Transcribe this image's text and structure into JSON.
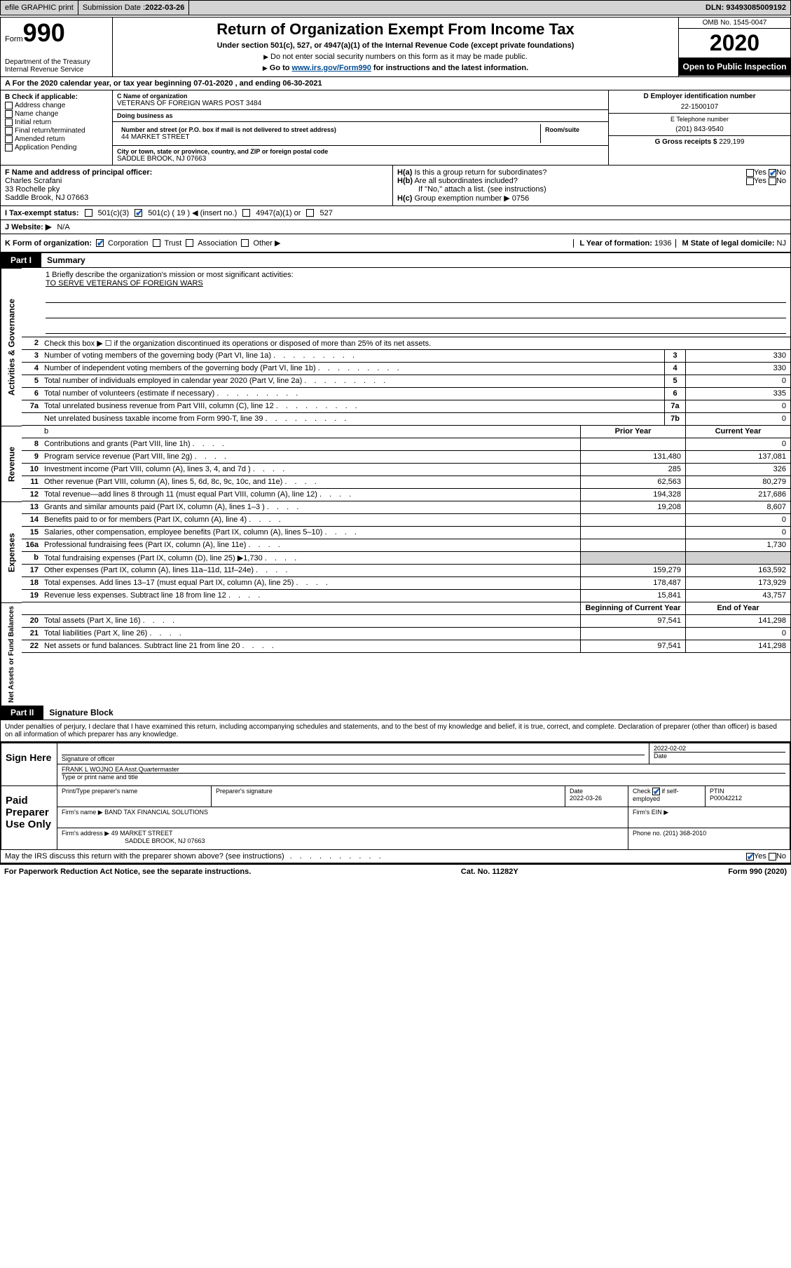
{
  "topbar": {
    "efile": "efile GRAPHIC print",
    "submission_label": "Submission Date : ",
    "submission_date": "2022-03-26",
    "dln_label": "DLN: ",
    "dln": "93493085009192"
  },
  "header": {
    "form_word": "Form",
    "form_number": "990",
    "dept": "Department of the Treasury\nInternal Revenue Service",
    "title": "Return of Organization Exempt From Income Tax",
    "subtitle": "Under section 501(c), 527, or 4947(a)(1) of the Internal Revenue Code (except private foundations)",
    "note1": "Do not enter social security numbers on this form as it may be made public.",
    "note2_pre": "Go to ",
    "note2_link": "www.irs.gov/Form990",
    "note2_post": " for instructions and the latest information.",
    "omb": "OMB No. 1545-0047",
    "year": "2020",
    "public": "Open to Public Inspection"
  },
  "period": {
    "text_pre": "For the 2020 calendar year, or tax year beginning ",
    "begin": "07-01-2020",
    "mid": " , and ending ",
    "end": "06-30-2021"
  },
  "section_b": {
    "label": "B Check if applicable:",
    "items": [
      "Address change",
      "Name change",
      "Initial return",
      "Final return/terminated",
      "Amended return",
      "Application Pending"
    ]
  },
  "org": {
    "name_label": "C Name of organization",
    "name": "VETERANS OF FOREIGN WARS POST 3484",
    "dba_label": "Doing business as",
    "dba": "",
    "addr_label": "Number and street (or P.O. box if mail is not delivered to street address)",
    "room_label": "Room/suite",
    "addr": "44 MARKET STREET",
    "city_label": "City or town, state or province, country, and ZIP or foreign postal code",
    "city": "SADDLE BROOK, NJ  07663"
  },
  "section_d": {
    "label": "D Employer identification number",
    "value": "22-1500107"
  },
  "section_e": {
    "label": "E Telephone number",
    "value": "(201) 843-9540"
  },
  "section_g": {
    "label": "G Gross receipts $ ",
    "value": "229,199"
  },
  "section_f": {
    "label": "F Name and address of principal officer:",
    "name": "Charles Scrafani",
    "addr": "33 Rochelle pky",
    "city": "Saddle Brook, NJ  07663"
  },
  "section_h": {
    "a_label": "H(a)  Is this a group return for subordinates?",
    "b_label": "H(b)  Are all subordinates included?",
    "b_note": "If \"No,\" attach a list. (see instructions)",
    "c_label": "H(c)  Group exemption number ▶ ",
    "c_value": "0756",
    "yes": "Yes",
    "no": "No"
  },
  "section_i": {
    "label": "I   Tax-exempt status:",
    "opt1": "501(c)(3)",
    "opt2": "501(c) ( 19 ) ◀ (insert no.)",
    "opt3": "4947(a)(1) or",
    "opt4": "527"
  },
  "section_j": {
    "label": "J   Website: ▶",
    "value": "N/A"
  },
  "section_k": {
    "label": "K Form of organization:",
    "opts": [
      "Corporation",
      "Trust",
      "Association",
      "Other ▶"
    ]
  },
  "section_l": {
    "label": "L Year of formation: ",
    "value": "1936"
  },
  "section_m": {
    "label": "M State of legal domicile: ",
    "value": "NJ"
  },
  "part1": {
    "tab": "Part I",
    "title": "Summary",
    "line1_label": "1   Briefly describe the organization's mission or most significant activities:",
    "line1_value": "TO SERVE VETERANS OF FOREIGN WARS",
    "line2": "Check this box ▶ ☐  if the organization discontinued its operations or disposed of more than 25% of its net assets.",
    "vert1": "Activities & Governance",
    "vert2": "Revenue",
    "vert3": "Expenses",
    "vert4": "Net Assets or Fund Balances"
  },
  "summary_gov": [
    {
      "n": "3",
      "d": "Number of voting members of the governing body (Part VI, line 1a)",
      "b": "3",
      "v": "330"
    },
    {
      "n": "4",
      "d": "Number of independent voting members of the governing body (Part VI, line 1b)",
      "b": "4",
      "v": "330"
    },
    {
      "n": "5",
      "d": "Total number of individuals employed in calendar year 2020 (Part V, line 2a)",
      "b": "5",
      "v": "0"
    },
    {
      "n": "6",
      "d": "Total number of volunteers (estimate if necessary)",
      "b": "6",
      "v": "335"
    },
    {
      "n": "7a",
      "d": "Total unrelated business revenue from Part VIII, column (C), line 12",
      "b": "7a",
      "v": "0"
    },
    {
      "n": "",
      "d": "Net unrelated business taxable income from Form 990-T, line 39",
      "b": "7b",
      "v": "0"
    }
  ],
  "col_headers": {
    "prior": "Prior Year",
    "current": "Current Year"
  },
  "summary_rev": [
    {
      "n": "8",
      "d": "Contributions and grants (Part VIII, line 1h)",
      "p": "",
      "c": "0"
    },
    {
      "n": "9",
      "d": "Program service revenue (Part VIII, line 2g)",
      "p": "131,480",
      "c": "137,081"
    },
    {
      "n": "10",
      "d": "Investment income (Part VIII, column (A), lines 3, 4, and 7d )",
      "p": "285",
      "c": "326"
    },
    {
      "n": "11",
      "d": "Other revenue (Part VIII, column (A), lines 5, 6d, 8c, 9c, 10c, and 11e)",
      "p": "62,563",
      "c": "80,279"
    },
    {
      "n": "12",
      "d": "Total revenue—add lines 8 through 11 (must equal Part VIII, column (A), line 12)",
      "p": "194,328",
      "c": "217,686"
    }
  ],
  "summary_exp": [
    {
      "n": "13",
      "d": "Grants and similar amounts paid (Part IX, column (A), lines 1–3 )",
      "p": "19,208",
      "c": "8,607"
    },
    {
      "n": "14",
      "d": "Benefits paid to or for members (Part IX, column (A), line 4)",
      "p": "",
      "c": "0"
    },
    {
      "n": "15",
      "d": "Salaries, other compensation, employee benefits (Part IX, column (A), lines 5–10)",
      "p": "",
      "c": "0"
    },
    {
      "n": "16a",
      "d": "Professional fundraising fees (Part IX, column (A), line 11e)",
      "p": "",
      "c": "1,730"
    },
    {
      "n": "b",
      "d": "Total fundraising expenses (Part IX, column (D), line 25) ▶1,730",
      "p": "shaded",
      "c": "shaded"
    },
    {
      "n": "17",
      "d": "Other expenses (Part IX, column (A), lines 11a–11d, 11f–24e)",
      "p": "159,279",
      "c": "163,592"
    },
    {
      "n": "18",
      "d": "Total expenses. Add lines 13–17 (must equal Part IX, column (A), line 25)",
      "p": "178,487",
      "c": "173,929"
    },
    {
      "n": "19",
      "d": "Revenue less expenses. Subtract line 18 from line 12",
      "p": "15,841",
      "c": "43,757"
    }
  ],
  "col_headers2": {
    "prior": "Beginning of Current Year",
    "current": "End of Year"
  },
  "summary_net": [
    {
      "n": "20",
      "d": "Total assets (Part X, line 16)",
      "p": "97,541",
      "c": "141,298"
    },
    {
      "n": "21",
      "d": "Total liabilities (Part X, line 26)",
      "p": "",
      "c": "0"
    },
    {
      "n": "22",
      "d": "Net assets or fund balances. Subtract line 21 from line 20",
      "p": "97,541",
      "c": "141,298"
    }
  ],
  "part2": {
    "tab": "Part II",
    "title": "Signature Block",
    "penalty": "Under penalties of perjury, I declare that I have examined this return, including accompanying schedules and statements, and to the best of my knowledge and belief, it is true, correct, and complete. Declaration of preparer (other than officer) is based on all information of which preparer has any knowledge."
  },
  "sign": {
    "here": "Sign Here",
    "sig_officer": "Signature of officer",
    "date": "2022-02-02",
    "date_label": "Date",
    "name": "FRANK L WOJNO EA  Asst.Quartermaster",
    "name_label": "Type or print name and title"
  },
  "paid": {
    "label": "Paid Preparer Use Only",
    "print_label": "Print/Type preparer's name",
    "sig_label": "Preparer's signature",
    "date_label": "Date",
    "date": "2022-03-26",
    "check_label": "Check ☑ if self-employed",
    "ptin_label": "PTIN",
    "ptin": "P00042212",
    "firm_name_label": "Firm's name    ▶",
    "firm_name": "BAND TAX FINANCIAL SOLUTIONS",
    "firm_ein_label": "Firm's EIN ▶",
    "firm_addr_label": "Firm's address ▶",
    "firm_addr": "49 MARKET STREET",
    "firm_city": "SADDLE BROOK, NJ  07663",
    "phone_label": "Phone no. ",
    "phone": "(201) 368-2010"
  },
  "discuss": {
    "text": "May the IRS discuss this return with the preparer shown above? (see instructions)",
    "yes": "Yes",
    "no": "No"
  },
  "footer": {
    "left": "For Paperwork Reduction Act Notice, see the separate instructions.",
    "mid": "Cat. No. 11282Y",
    "right": "Form 990 (2020)"
  }
}
